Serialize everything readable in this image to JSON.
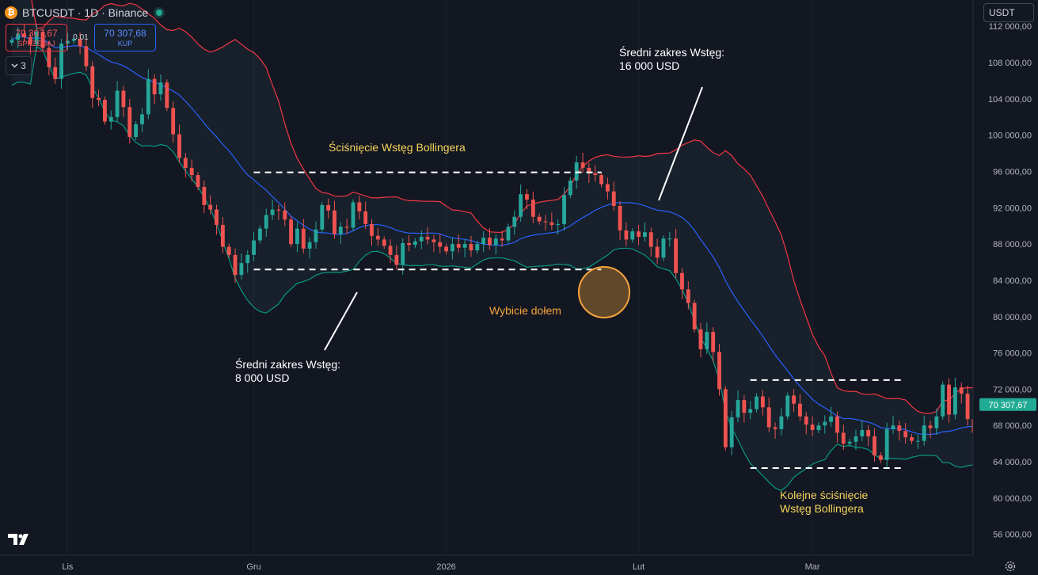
{
  "header": {
    "symbol_title": "BTCUSDT · 1D · Binance",
    "logo_glyph": "₿",
    "sell_price": "70 307,67",
    "sell_label": "SPRZEDAJ",
    "spread": "0,01",
    "buy_price": "70 307,68",
    "buy_label": "KUP",
    "indicators_count": "3",
    "currency": "USDT"
  },
  "colors": {
    "background": "#131722",
    "up": "#26a69a",
    "down": "#ef5350",
    "upper_band": "#f23645",
    "middle_band": "#2962ff",
    "lower_band": "#089981",
    "annotation_yellow": "#f5d45a",
    "annotation_orange": "#f7a43b",
    "last_price_bg": "#22ab94"
  },
  "chart_data": {
    "type": "candlestick",
    "x_axis": {
      "labels": [
        {
          "text": "Lis",
          "date": "2025-11-01"
        },
        {
          "text": "Gru",
          "date": "2025-12-01"
        },
        {
          "text": "2026",
          "date": "2026-01-01"
        },
        {
          "text": "Lut",
          "date": "2026-02-01"
        },
        {
          "text": "Mar",
          "date": "2026-03-01"
        }
      ],
      "range": [
        "2025-10-22",
        "2026-03-14"
      ]
    },
    "y_axis": {
      "range": [
        53700,
        114900
      ],
      "ticks": [
        56000,
        60000,
        64000,
        68000,
        72000,
        76000,
        80000,
        84000,
        88000,
        92000,
        96000,
        100000,
        104000,
        108000,
        112000
      ],
      "tick_labels": [
        "56 000,00",
        "60 000,00",
        "64 000,00",
        "68 000,00",
        "72 000,00",
        "76 000,00",
        "80 000,00",
        "84 000,00",
        "88 000,00",
        "92 000,00",
        "96 000,00",
        "100 000,00",
        "104 000,00",
        "108 000,00",
        "112 000,00"
      ]
    },
    "last_price": 70307.67,
    "last_price_label": "70 307,67",
    "candles_start_date": "2025-10-23",
    "closes": [
      110500,
      111200,
      110800,
      110000,
      111400,
      109600,
      107500,
      106200,
      110100,
      110400,
      110600,
      109800,
      107600,
      104100,
      103900,
      101500,
      102000,
      104900,
      103100,
      99800,
      101200,
      102300,
      106200,
      104500,
      105800,
      103000,
      100100,
      97500,
      96400,
      95600,
      94300,
      92300,
      91800,
      90100,
      87700,
      86800,
      84600,
      85900,
      86800,
      88400,
      89700,
      91200,
      91800,
      91700,
      90700,
      88000,
      89700,
      87500,
      88200,
      89600,
      92300,
      91700,
      89100,
      89900,
      89800,
      92600,
      91600,
      90200,
      88900,
      88500,
      87800,
      86800,
      85700,
      88100,
      87900,
      88300,
      88800,
      88500,
      88200,
      87700,
      87200,
      88000,
      87600,
      88000,
      87300,
      88000,
      88700,
      87900,
      88600,
      88400,
      89900,
      91000,
      93500,
      92900,
      91000,
      90500,
      90400,
      90100,
      90200,
      93400,
      95000,
      97000,
      96400,
      95800,
      95600,
      94600,
      93800,
      92200,
      89500,
      88500,
      89400,
      88800,
      89300,
      87700,
      86500,
      88600,
      88600,
      84800,
      83000,
      81500,
      78600,
      76400,
      78300,
      76100,
      72000,
      65600,
      68900,
      70800,
      69400,
      69800,
      71200,
      70000,
      67800,
      67600,
      69000,
      71300,
      70400,
      69000,
      68100,
      67500,
      68000,
      68400,
      69000,
      67200,
      66000,
      66200,
      66800,
      67500,
      66800,
      64700,
      64200,
      67600,
      68000,
      67400,
      66700,
      66300,
      66300,
      68000,
      67700,
      69000,
      72500,
      69200,
      72200,
      71500,
      68700,
      67200,
      66100,
      65800,
      68100,
      69600,
      70300
    ],
    "bollinger": {
      "period": 20,
      "stddev": 2,
      "show_channel_fill": true
    },
    "annotations": [
      {
        "id": "squeeze-1",
        "text": "Ściśnięcie Wstęg Bollingera",
        "color": "yellow"
      },
      {
        "id": "range-8k",
        "lines": [
          "Średni zakres Wstęg:",
          "8 000 USD"
        ],
        "color": "white"
      },
      {
        "id": "range-16k",
        "lines": [
          "Średni zakres Wstęg:",
          "16 000 USD"
        ],
        "color": "white"
      },
      {
        "id": "breakdown",
        "text": "Wybicie dołem",
        "color": "orange"
      },
      {
        "id": "squeeze-2",
        "lines": [
          "Kolejne ściśnięcie",
          "Wstęg Bollingera"
        ],
        "color": "yellow"
      }
    ],
    "range_levels": [
      {
        "value": 95900,
        "from": "2025-12-01",
        "to": "2026-01-26"
      },
      {
        "value": 85200,
        "from": "2025-12-01",
        "to": "2026-01-26"
      },
      {
        "value": 73000,
        "from": "2026-02-19",
        "to": "2026-03-16"
      },
      {
        "value": 63300,
        "from": "2026-02-19",
        "to": "2026-03-16"
      }
    ],
    "grid": "vertical-at-month-labels"
  }
}
